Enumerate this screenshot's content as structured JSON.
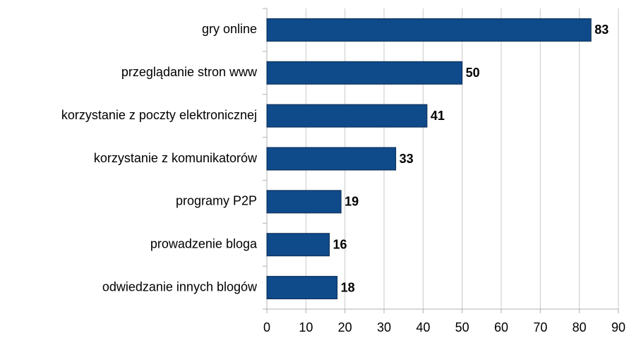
{
  "chart_data": {
    "type": "barh",
    "categories": [
      "gry online",
      "przeglądanie stron www",
      "korzystanie z poczty elektronicznej",
      "korzystanie z komunikatorów",
      "programy P2P",
      "prowadzenie bloga",
      "odwiedzanie innych blogów"
    ],
    "values": [
      83,
      50,
      41,
      33,
      19,
      16,
      18
    ],
    "color": "#0f4a8a",
    "xlim": [
      0,
      90
    ],
    "xticks": [
      0,
      10,
      20,
      30,
      40,
      50,
      60,
      70,
      80,
      90
    ],
    "grid": true
  }
}
